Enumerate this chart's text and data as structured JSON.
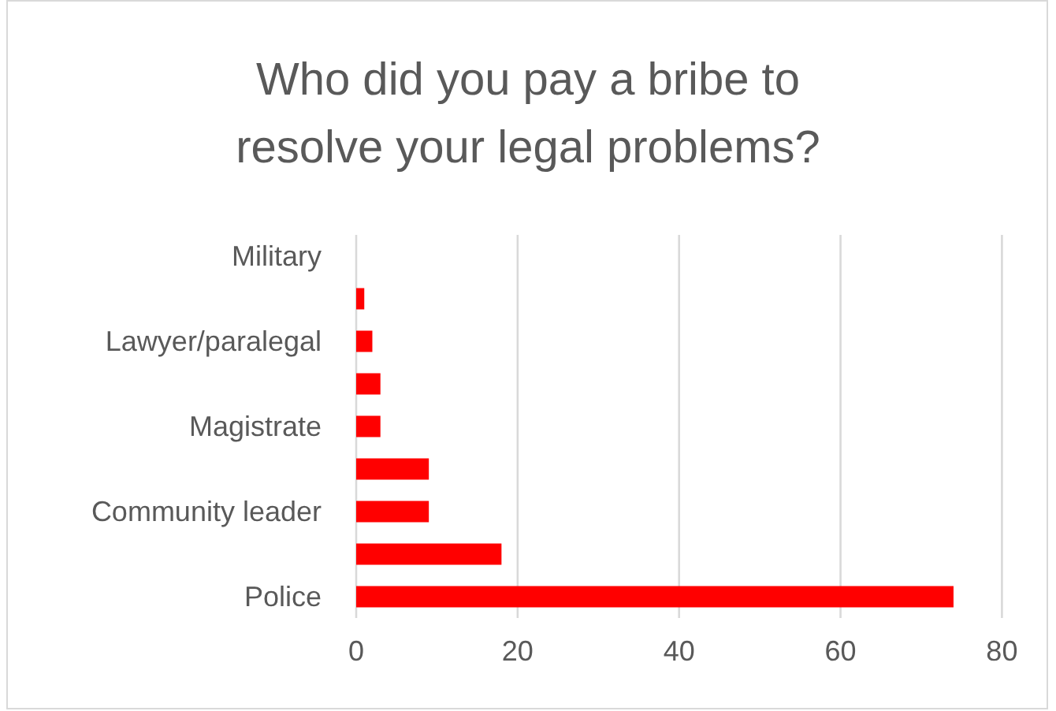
{
  "chart_data": {
    "type": "bar",
    "orientation": "horizontal",
    "title": "Who did you pay a bribe to resolve your legal problems?",
    "categories": [
      "Military",
      null,
      "Lawyer/paralegal",
      null,
      "Magistrate",
      null,
      "Community leader",
      null,
      "Police"
    ],
    "values": [
      0,
      1,
      2,
      3,
      3,
      9,
      9,
      18,
      74
    ],
    "color": "#ff0000",
    "xlim": [
      0,
      80
    ],
    "xticks": [
      0,
      20,
      40,
      60,
      80
    ],
    "grid": "x"
  }
}
